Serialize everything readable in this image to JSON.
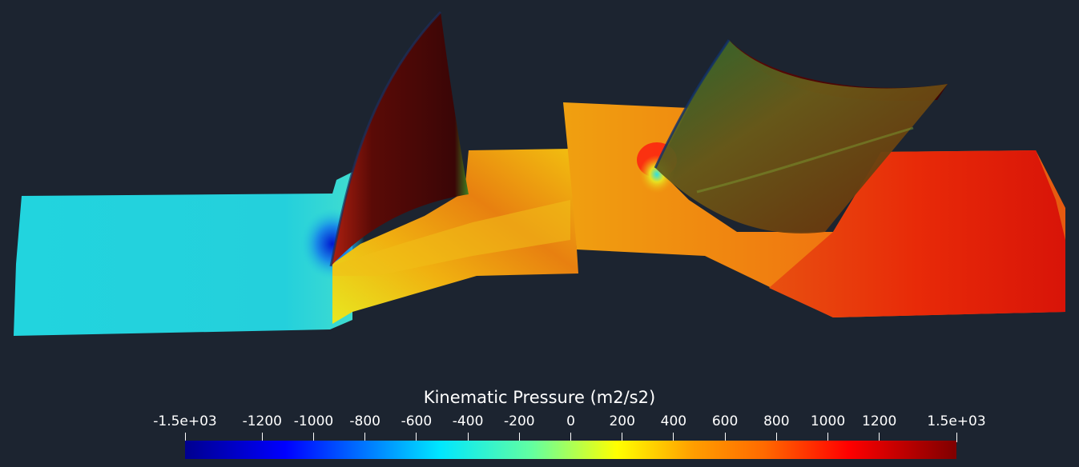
{
  "colorbar": {
    "title": "Kinematic Pressure (m2/s2)",
    "range": [
      -1500,
      1500
    ],
    "colormap": [
      "#00008f",
      "#0000ff",
      "#00e6ff",
      "#63ffa0",
      "#ffff00",
      "#ff9d00",
      "#ff6a00",
      "#ff0000",
      "#7f0000"
    ],
    "ticks": [
      {
        "label": "-1.5e+03",
        "value": -1500
      },
      {
        "label": "-1200",
        "value": -1200
      },
      {
        "label": "-1000",
        "value": -1000
      },
      {
        "label": "-800",
        "value": -800
      },
      {
        "label": "-600",
        "value": -600
      },
      {
        "label": "-400",
        "value": -400
      },
      {
        "label": "-200",
        "value": -200
      },
      {
        "label": "0",
        "value": 0
      },
      {
        "label": "200",
        "value": 200
      },
      {
        "label": "400",
        "value": 400
      },
      {
        "label": "600",
        "value": 600
      },
      {
        "label": "800",
        "value": 800
      },
      {
        "label": "1000",
        "value": 1000
      },
      {
        "label": "1200",
        "value": 1200
      },
      {
        "label": "1.5e+03",
        "value": 1500
      }
    ]
  },
  "scene": {
    "background": "#1c2430",
    "field_colors": {
      "inlet": "#20d4dc",
      "mid": "#f0a410",
      "outlet": "#d81c08",
      "blade_dark": "#3a0a06"
    }
  }
}
